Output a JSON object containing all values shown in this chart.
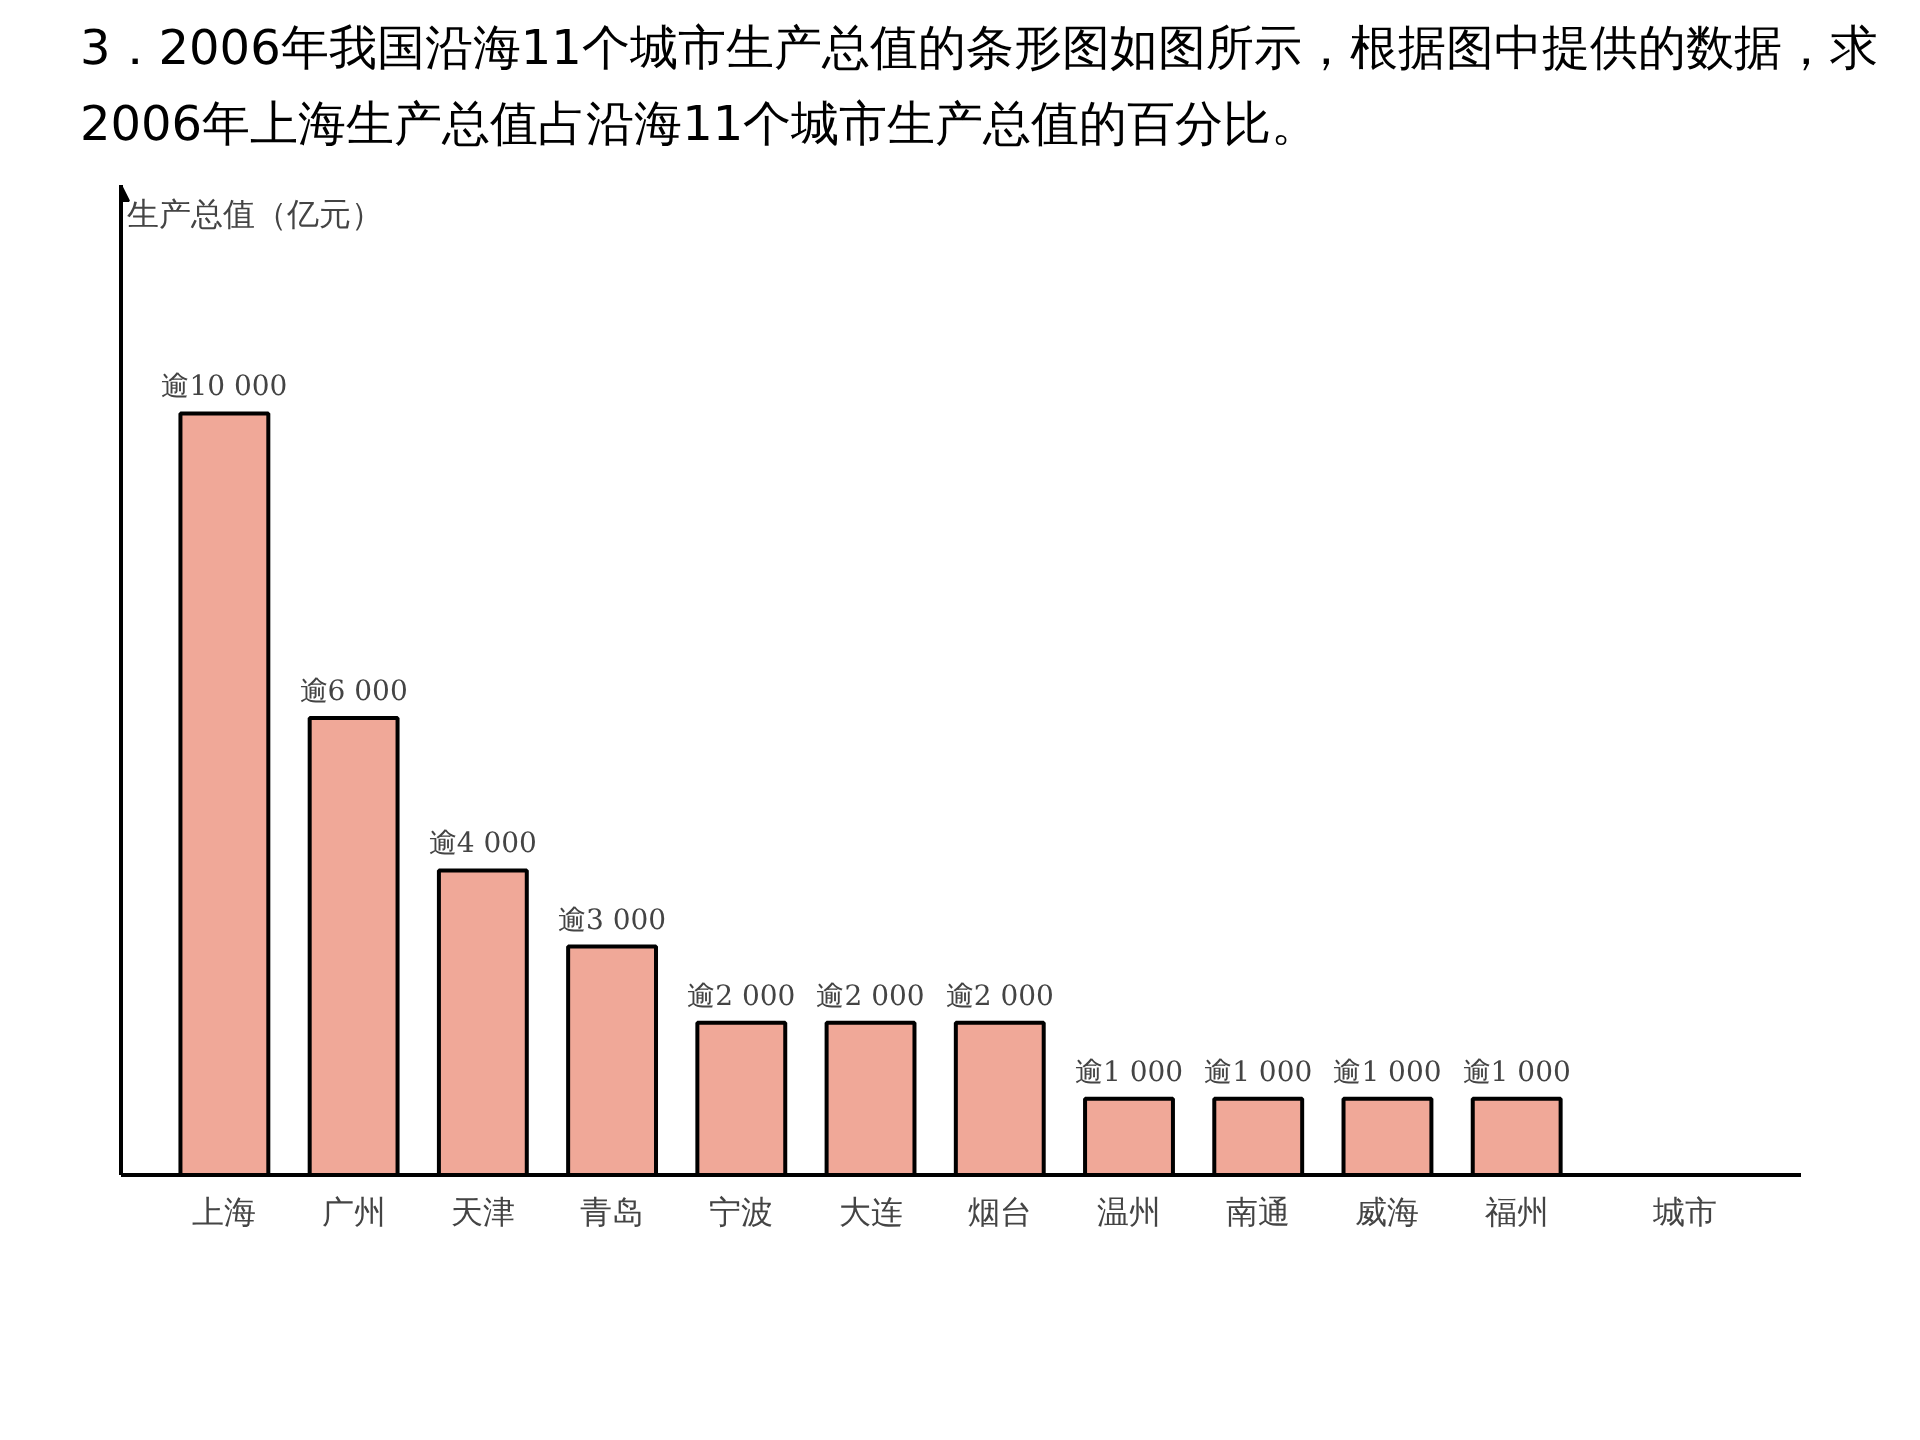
{
  "chart_data": {
    "type": "bar",
    "title": "3．2006年我国沿海11个城市生产总值的条形图如图所示，根据图中提供的数据，求2006年上海生产总值占沿海11个城市生产总值的百分比。",
    "annotations": [
      "生产总值（亿元）"
    ],
    "xlabel": "城市",
    "categories": [
      "上海",
      "广州",
      "天津",
      "青岛",
      "宁波",
      "大连",
      "烟台",
      "温州",
      "南通",
      "威海",
      "福州"
    ],
    "values": [
      10000,
      6000,
      4000,
      3000,
      2000,
      2000,
      2000,
      1000,
      1000,
      1000,
      1000
    ],
    "value_labels": [
      "逾10 000",
      "逾6 000",
      "逾4 000",
      "逾3 000",
      "逾2 000",
      "逾2 000",
      "逾2 000",
      "逾1 000",
      "逾1 000",
      "逾1 000",
      "逾1 000"
    ],
    "color": "#f0a898",
    "grid": false
  }
}
